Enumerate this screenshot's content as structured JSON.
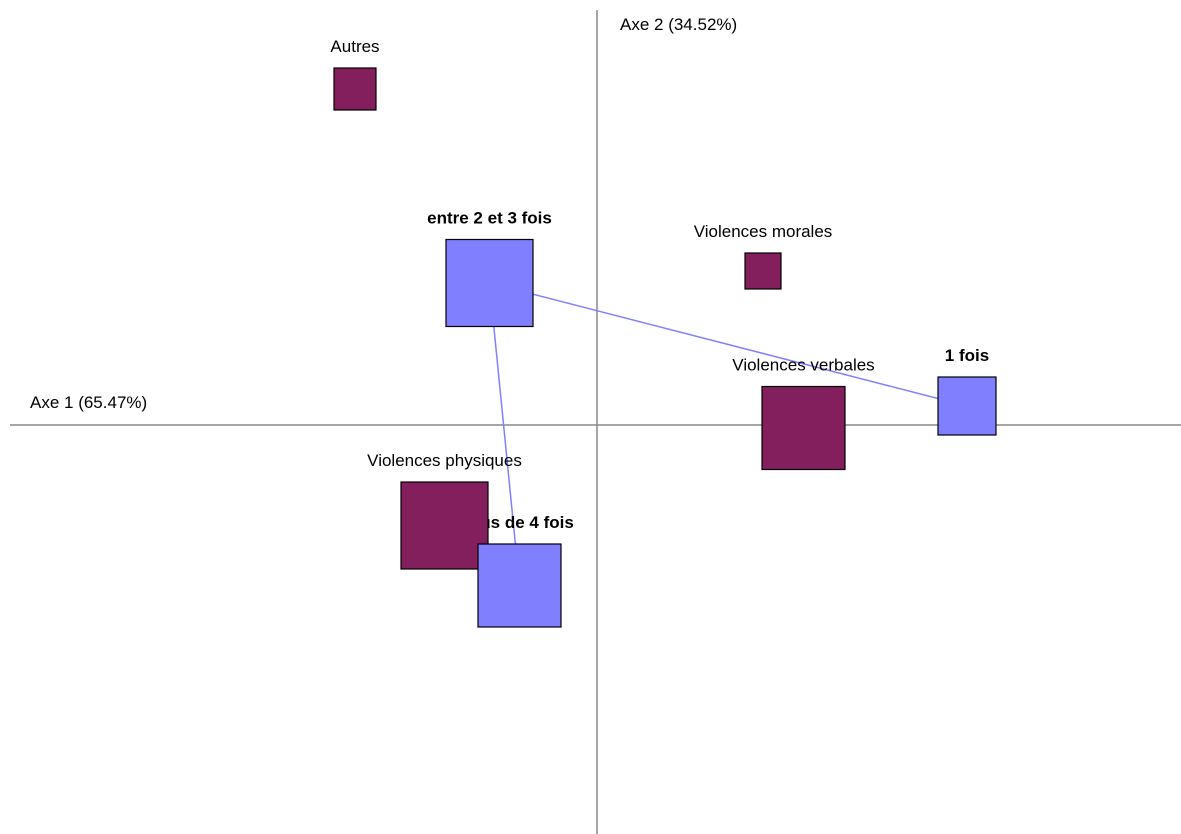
{
  "chart_data": {
    "type": "scatter",
    "x_label": "Axe 1 (65.47%)",
    "y_label": "Axe 2 (34.52%)",
    "xlim": [
      -5.87,
      5.84
    ],
    "ylim": [
      -4.09,
      4.15
    ],
    "series": [
      {
        "color": "#841f5e",
        "labels": [
          "Autres",
          "Violences morales",
          "Violences verbales",
          "Violences physiques"
        ],
        "x": [
          -2.42,
          1.66,
          2.065,
          -1.525
        ],
        "y": [
          3.36,
          1.54,
          -0.03,
          -1.005
        ],
        "sizes": [
          0.42,
          0.36,
          0.83,
          0.87
        ],
        "bold": false,
        "connect": false
      },
      {
        "color": "#8080ff",
        "labels": [
          "1 fois",
          "entre 2 et 3 fois",
          "plus de 4 fois"
        ],
        "x": [
          3.7,
          -1.075,
          -0.775
        ],
        "y": [
          0.19,
          1.42,
          -1.605
        ],
        "sizes": [
          0.58,
          0.87,
          0.83
        ],
        "bold": true,
        "connect": true
      }
    ]
  }
}
